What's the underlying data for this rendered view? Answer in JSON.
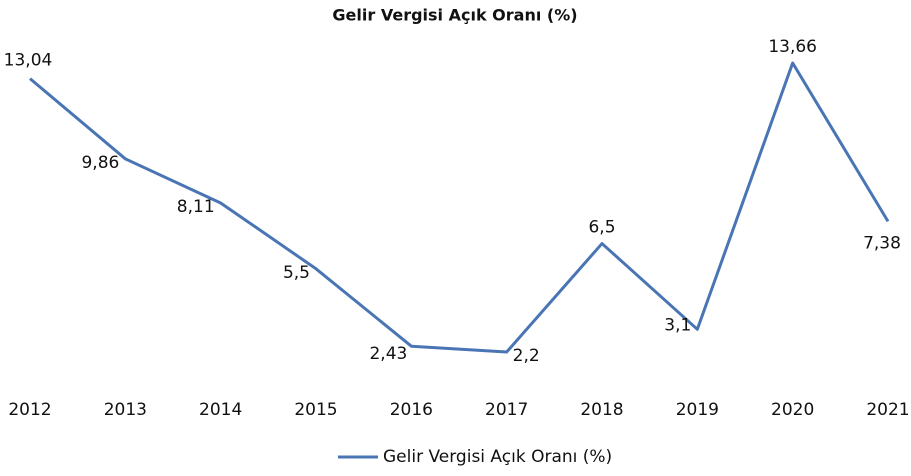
{
  "chart_data": {
    "type": "line",
    "title": "Gelir Vergisi Açık Oranı (%)",
    "categories": [
      "2012",
      "2013",
      "2014",
      "2015",
      "2016",
      "2017",
      "2018",
      "2019",
      "2020",
      "2021"
    ],
    "series": [
      {
        "name": "Gelir Vergisi Açık Oranı (%)",
        "color": "#4a75b5",
        "values": [
          13.04,
          9.86,
          8.11,
          5.5,
          2.43,
          2.2,
          6.5,
          3.1,
          13.66,
          7.38
        ],
        "value_labels": [
          "13,04",
          "9,86",
          "8,11",
          "5,5",
          "2,43",
          "2,2",
          "6,5",
          "3,1",
          "13,66",
          "7,38"
        ]
      }
    ],
    "legend": "bottom"
  }
}
